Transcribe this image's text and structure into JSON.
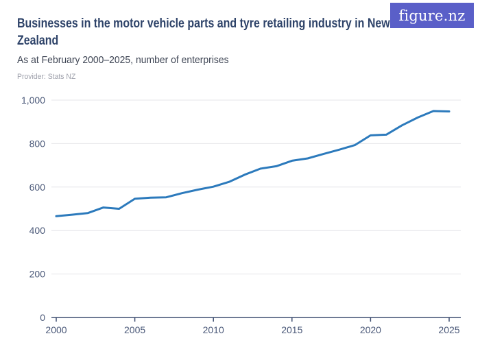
{
  "header": {
    "title": "Businesses in the motor vehicle parts and tyre retailing industry in New Zealand",
    "subtitle": "As at February 2000–2025, number of enterprises",
    "provider": "Provider: Stats NZ"
  },
  "logo": {
    "text": "figure.nz",
    "bg_color": "#5a5fc8",
    "text_color": "#ffffff"
  },
  "chart_data": {
    "type": "line",
    "title": "Businesses in the motor vehicle parts and tyre retailing industry in New Zealand",
    "subtitle": "As at February 2000–2025, number of enterprises",
    "series_name": "Number of enterprises",
    "x": [
      2000,
      2001,
      2002,
      2003,
      2004,
      2005,
      2006,
      2007,
      2008,
      2009,
      2010,
      2011,
      2012,
      2013,
      2014,
      2015,
      2016,
      2017,
      2018,
      2019,
      2020,
      2021,
      2022,
      2023,
      2024,
      2025
    ],
    "values": [
      466,
      473,
      480,
      506,
      500,
      546,
      551,
      553,
      572,
      588,
      602,
      624,
      657,
      685,
      696,
      721,
      732,
      752,
      772,
      793,
      838,
      841,
      884,
      920,
      950,
      948
    ],
    "xlabel": "",
    "ylabel": "",
    "xlim": [
      2000,
      2025
    ],
    "ylim": [
      0,
      1000
    ],
    "xticks": [
      2000,
      2005,
      2010,
      2015,
      2020,
      2025
    ],
    "yticks": [
      0,
      200,
      400,
      600,
      800,
      1000
    ],
    "grid": "horizontal",
    "legend": "none",
    "line_color": "#2c7abc",
    "axis_color": "#3e4e71",
    "tick_label_color": "#4a5878"
  }
}
